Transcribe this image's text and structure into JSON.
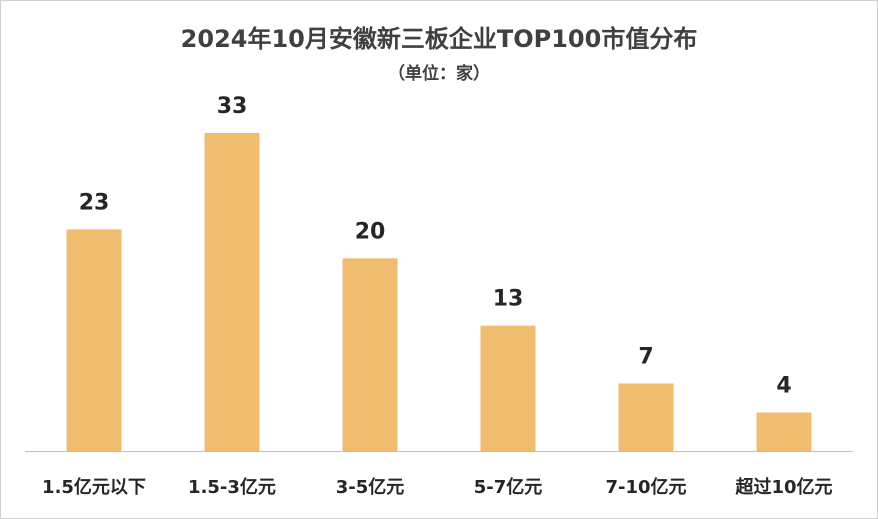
{
  "chart_data": {
    "type": "bar",
    "title": "2024年10月安徽新三板企业TOP100市值分布",
    "subtitle": "（单位：家）",
    "categories": [
      "1.5亿元以下",
      "1.5-3亿元",
      "3-5亿元",
      "5-7亿元",
      "7-10亿元",
      "超过10亿元"
    ],
    "values": [
      23,
      33,
      20,
      13,
      7,
      4
    ],
    "xlabel": "",
    "ylabel": "",
    "ylim": [
      0,
      33
    ],
    "grid": false,
    "legend": "none",
    "data_labels": true,
    "bar_color": "#F0BC70",
    "text_color": "#262626",
    "title_color": "#404040",
    "axis_color": "#BFBFBF"
  }
}
